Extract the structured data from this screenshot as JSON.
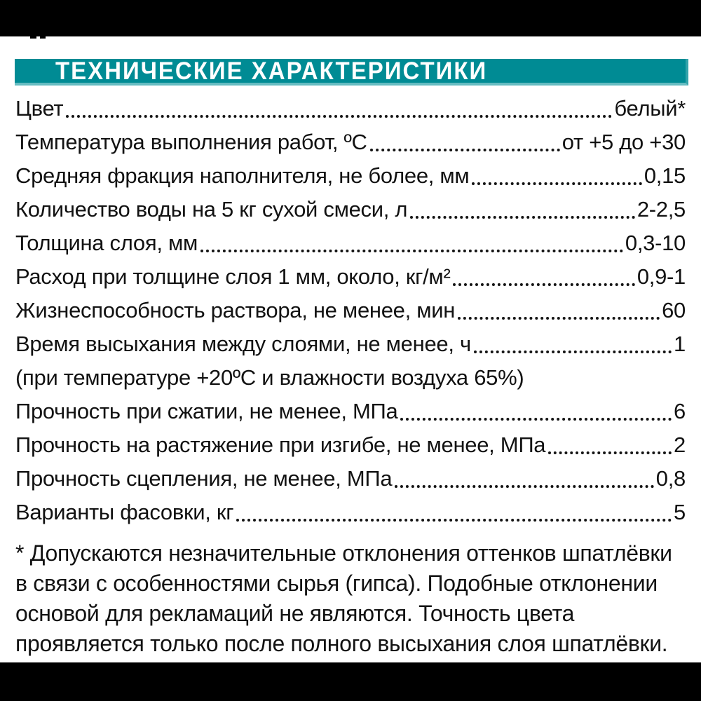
{
  "colors": {
    "accent_teal": "#008b94",
    "bar_black": "#000000",
    "text": "#121212",
    "header_text": "#ffffff"
  },
  "header": {
    "title": "ТЕХНИЧЕСКИЕ ХАРАКТЕРИСТИКИ"
  },
  "specs": {
    "rows": [
      {
        "label": "Цвет",
        "value": "белый*"
      },
      {
        "label": "Температура выполнения работ, ºС",
        "value": "от +5 до +30"
      },
      {
        "label": "Средняя фракция наполнителя, не более, мм",
        "value": "0,15"
      },
      {
        "label": "Количество воды на 5 кг сухой смеси, л",
        "value": "2-2,5"
      },
      {
        "label": "Толщина слоя, мм",
        "value": "0,3-10"
      },
      {
        "label": "Расход при толщине слоя 1 мм, около, кг/м²",
        "value": "0,9-1"
      },
      {
        "label": "Жизнеспособность раствора, не менее, мин",
        "value": "60"
      },
      {
        "label": "Время высыхания между слоями, не менее, ч",
        "value": "1"
      },
      {
        "label": "(при температуре +20ºС и влажности воздуха 65%)",
        "value": ""
      },
      {
        "label": "Прочность при сжатии, не менее, МПа",
        "value": "6"
      },
      {
        "label": "Прочность на растяжение при изгибе, не менее, МПа",
        "value": "2"
      },
      {
        "label": "Прочность сцепления, не менее, МПа",
        "value": "0,8"
      },
      {
        "label": "Варианты фасовки, кг",
        "value": "5"
      }
    ]
  },
  "footnote": {
    "text": "* Допускаются незначительные отклонения оттенков шпатлёвки\nв связи с особенностями сырья (гипса). Подобные отклонении\nосновой для рекламаций не являются. Точность цвета\nпроявляется только после полного высыхания слоя шпатлёвки."
  }
}
